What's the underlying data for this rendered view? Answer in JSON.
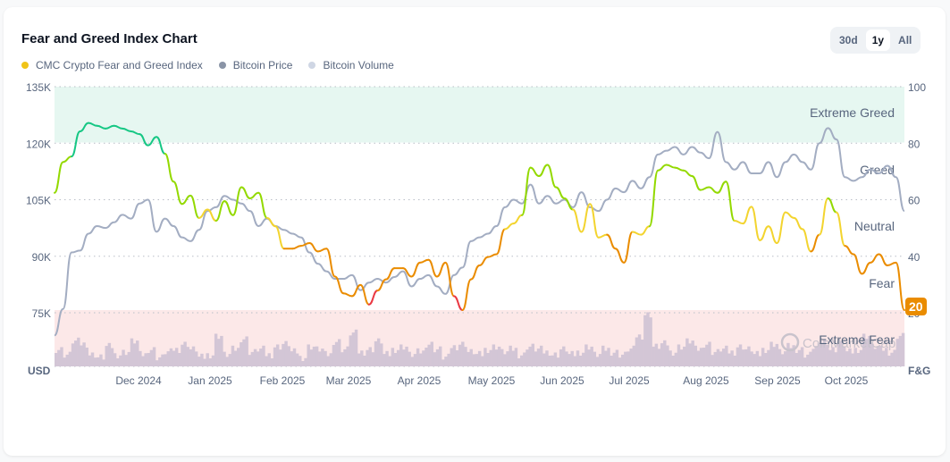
{
  "header": {
    "title": "Fear and Greed Index Chart"
  },
  "legend": [
    {
      "label": "CMC Crypto Fear and Greed Index",
      "color": "#f0c419"
    },
    {
      "label": "Bitcoin Price",
      "color": "#8a94a6"
    },
    {
      "label": "Bitcoin Volume",
      "color": "#cfd6e4"
    }
  ],
  "range_selector": {
    "options": [
      "30d",
      "1y",
      "All"
    ],
    "active": "1y"
  },
  "current_value_badge": "20",
  "watermark": "CoinMarketCap",
  "colors": {
    "extreme_greed_zone": "#e6f7f1",
    "extreme_fear_zone": "#fce8e8",
    "price_line": "#a3adc2",
    "volume_bars": "#d3c6d6",
    "fg_extreme_greed": "#16c784",
    "fg_greed": "#93d900",
    "fg_neutral": "#f3d42f",
    "fg_fear": "#ea8c00",
    "fg_extreme_fear": "#ea3943"
  },
  "chart_data": {
    "type": "line",
    "title": "Fear and Greed Index Chart",
    "x_tick_labels": [
      "Dec 2024",
      "Jan 2025",
      "Feb 2025",
      "Mar 2025",
      "Apr 2025",
      "May 2025",
      "Jun 2025",
      "Jul 2025",
      "Aug 2025",
      "Sep 2025",
      "Oct 2025"
    ],
    "left_axis": {
      "label": "USD",
      "ticks": [
        "135K",
        "120K",
        "105K",
        "90K",
        "75K"
      ],
      "range": [
        60000,
        135000
      ]
    },
    "right_axis": {
      "label": "F&G",
      "ticks": [
        "100",
        "80",
        "60",
        "40",
        "20"
      ],
      "range": [
        0,
        100
      ]
    },
    "zones": [
      {
        "label": "Extreme Greed",
        "from": 80,
        "to": 100
      },
      {
        "label": "Greed",
        "position": 70
      },
      {
        "label": "Neutral",
        "position": 50
      },
      {
        "label": "Fear",
        "position": 30
      },
      {
        "label": "Extreme Fear",
        "from": 0,
        "to": 20
      }
    ],
    "grid": "dotted-horizontal",
    "legend_position": "top-left",
    "series": [
      {
        "name": "CMC Crypto Fear and Greed Index",
        "axis": "right",
        "x_frac": [
          0,
          0.01,
          0.02,
          0.03,
          0.04,
          0.05,
          0.06,
          0.07,
          0.08,
          0.09,
          0.1,
          0.11,
          0.12,
          0.13,
          0.14,
          0.15,
          0.16,
          0.17,
          0.18,
          0.19,
          0.2,
          0.21,
          0.22,
          0.23,
          0.24,
          0.25,
          0.26,
          0.27,
          0.28,
          0.29,
          0.3,
          0.31,
          0.32,
          0.33,
          0.34,
          0.35,
          0.36,
          0.37,
          0.38,
          0.39,
          0.4,
          0.41,
          0.42,
          0.43,
          0.44,
          0.45,
          0.46,
          0.47,
          0.48,
          0.49,
          0.5,
          0.51,
          0.52,
          0.53,
          0.54,
          0.55,
          0.56,
          0.57,
          0.58,
          0.59,
          0.6,
          0.61,
          0.62,
          0.63,
          0.64,
          0.65,
          0.66,
          0.67,
          0.68,
          0.69,
          0.7,
          0.71,
          0.72,
          0.73,
          0.74,
          0.75,
          0.76,
          0.77,
          0.78,
          0.79,
          0.8,
          0.81,
          0.82,
          0.83,
          0.84,
          0.85,
          0.86,
          0.87,
          0.88,
          0.89,
          0.9,
          0.91,
          0.92,
          0.93,
          0.94,
          0.95,
          0.96,
          0.97,
          0.98,
          0.99,
          1.0
        ],
        "values": [
          62,
          73,
          75,
          84,
          87,
          86,
          85,
          86,
          85,
          84,
          83,
          79,
          82,
          76,
          66,
          58,
          61,
          53,
          56,
          52,
          59,
          54,
          64,
          60,
          62,
          53,
          50,
          42,
          42,
          43,
          44,
          41,
          42,
          32,
          26,
          25,
          29,
          22,
          27,
          31,
          35,
          35,
          32,
          37,
          38,
          32,
          37,
          25,
          20,
          31,
          36,
          39,
          40,
          49,
          51,
          54,
          71,
          68,
          72,
          64,
          60,
          56,
          48,
          58,
          46,
          47,
          42,
          37,
          48,
          47,
          50,
          70,
          72,
          71,
          70,
          68,
          63,
          64,
          62,
          66,
          52,
          51,
          57,
          45,
          50,
          44,
          55,
          53,
          49,
          41,
          47,
          60,
          55,
          43,
          40,
          33,
          37,
          40,
          36,
          37,
          20
        ]
      },
      {
        "name": "Bitcoin Price",
        "axis": "left",
        "x_frac": [
          0,
          0.01,
          0.02,
          0.03,
          0.04,
          0.05,
          0.06,
          0.07,
          0.08,
          0.09,
          0.1,
          0.11,
          0.12,
          0.13,
          0.14,
          0.15,
          0.16,
          0.17,
          0.18,
          0.19,
          0.2,
          0.21,
          0.22,
          0.23,
          0.24,
          0.25,
          0.26,
          0.27,
          0.28,
          0.29,
          0.3,
          0.31,
          0.32,
          0.33,
          0.34,
          0.35,
          0.36,
          0.37,
          0.38,
          0.39,
          0.4,
          0.41,
          0.42,
          0.43,
          0.44,
          0.45,
          0.46,
          0.47,
          0.48,
          0.49,
          0.5,
          0.51,
          0.52,
          0.53,
          0.54,
          0.55,
          0.56,
          0.57,
          0.58,
          0.59,
          0.6,
          0.61,
          0.62,
          0.63,
          0.64,
          0.65,
          0.66,
          0.67,
          0.68,
          0.69,
          0.7,
          0.71,
          0.72,
          0.73,
          0.74,
          0.75,
          0.76,
          0.77,
          0.78,
          0.79,
          0.8,
          0.81,
          0.82,
          0.83,
          0.84,
          0.85,
          0.86,
          0.87,
          0.88,
          0.89,
          0.9,
          0.91,
          0.92,
          0.93,
          0.94,
          0.95,
          0.96,
          0.97,
          0.98,
          0.99,
          1.0
        ],
        "values": [
          69000,
          76000,
          91000,
          91500,
          96000,
          98000,
          97500,
          99000,
          101000,
          100000,
          104000,
          105000,
          96500,
          100000,
          98000,
          95000,
          94000,
          97000,
          102000,
          103000,
          106000,
          105000,
          104000,
          102000,
          98000,
          100000,
          98000,
          97000,
          96000,
          95000,
          91000,
          88000,
          86000,
          84000,
          84000,
          85000,
          81000,
          83000,
          84000,
          83000,
          84500,
          86000,
          82000,
          84000,
          85000,
          82000,
          80000,
          85000,
          87000,
          94000,
          95000,
          96000,
          98000,
          103000,
          105000,
          104000,
          109000,
          104000,
          106000,
          104000,
          105000,
          103000,
          107000,
          103000,
          102000,
          105000,
          108000,
          107000,
          110000,
          108000,
          111000,
          117000,
          118000,
          119000,
          117000,
          119000,
          117500,
          116000,
          123000,
          115000,
          113000,
          115000,
          112000,
          112000,
          115000,
          111000,
          115000,
          117000,
          115000,
          113000,
          120000,
          124000,
          121000,
          111000,
          110000,
          111000,
          113000,
          112000,
          114000,
          111000,
          102000
        ]
      },
      {
        "name": "Bitcoin Volume",
        "axis": "none",
        "note": "relative bar heights (0-1) within lower band; peaks near Mar 2025 and early Jul 2025",
        "values": [
          0.3,
          0.2,
          0.45,
          0.4,
          0.2,
          0.15,
          0.35,
          0.2,
          0.25,
          0.45,
          0.2,
          0.3,
          0.15,
          0.25,
          0.3,
          0.4,
          0.3,
          0.15,
          0.2,
          0.55,
          0.2,
          0.3,
          0.5,
          0.25,
          0.3,
          0.2,
          0.35,
          0.4,
          0.25,
          0.15,
          0.35,
          0.3,
          0.2,
          0.45,
          0.3,
          0.6,
          0.25,
          0.3,
          0.45,
          0.2,
          0.3,
          0.35,
          0.2,
          0.25,
          0.4,
          0.3,
          0.15,
          0.35,
          0.4,
          0.25,
          0.2,
          0.3,
          0.35,
          0.25,
          0.3,
          0.2,
          0.35,
          0.3,
          0.25,
          0.2,
          0.3,
          0.2,
          0.25,
          0.35,
          0.2,
          0.3,
          0.25,
          0.2,
          0.3,
          0.55,
          0.95,
          0.35,
          0.4,
          0.25,
          0.35,
          0.45,
          0.3,
          0.4,
          0.25,
          0.3,
          0.25,
          0.35,
          0.3,
          0.2,
          0.3,
          0.4,
          0.25,
          0.35,
          0.3,
          0.2,
          0.35,
          0.45,
          0.3,
          0.4,
          0.25,
          0.3,
          0.55,
          0.35,
          0.3,
          0.25,
          0.55
        ]
      }
    ]
  }
}
